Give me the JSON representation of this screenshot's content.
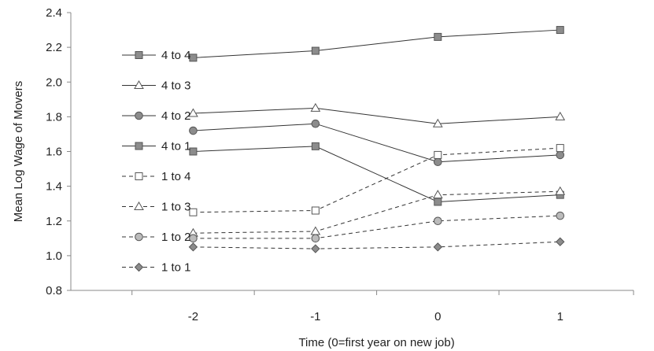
{
  "chart_data": {
    "type": "line",
    "title": "",
    "xlabel": "Time (0=first year on new job)",
    "ylabel": "Mean Log Wage of Movers",
    "x": [
      -2,
      -1,
      0,
      1
    ],
    "x_tick_labels": [
      "-2",
      "-1",
      "0",
      "1"
    ],
    "ylim": [
      0.8,
      2.4
    ],
    "y_ticks": [
      0.8,
      1.0,
      1.2,
      1.4,
      1.6,
      1.8,
      2.0,
      2.2,
      2.4
    ],
    "y_tick_labels": [
      "0.8",
      "1.0",
      "1.2",
      "1.4",
      "1.6",
      "1.8",
      "2.0",
      "2.2",
      "2.4"
    ],
    "grid": false,
    "legend_position": "left",
    "series": [
      {
        "name": "4 to 4",
        "values": [
          2.14,
          2.18,
          2.26,
          2.3
        ],
        "marker": "square",
        "fill": "#8c8c8c",
        "dash": "solid"
      },
      {
        "name": "4 to 3",
        "values": [
          1.82,
          1.85,
          1.76,
          1.8
        ],
        "marker": "triangle",
        "fill": "#ffffff",
        "dash": "solid"
      },
      {
        "name": "4 to 2",
        "values": [
          1.72,
          1.76,
          1.54,
          1.58
        ],
        "marker": "circle",
        "fill": "#8c8c8c",
        "dash": "solid"
      },
      {
        "name": "4 to 1",
        "values": [
          1.6,
          1.63,
          1.31,
          1.35
        ],
        "marker": "square",
        "fill": "#8c8c8c",
        "dash": "solid"
      },
      {
        "name": "1 to 4",
        "values": [
          1.25,
          1.26,
          1.58,
          1.62
        ],
        "marker": "square",
        "fill": "#ffffff",
        "dash": "dashed"
      },
      {
        "name": "1 to 3",
        "values": [
          1.13,
          1.14,
          1.35,
          1.37
        ],
        "marker": "triangle",
        "fill": "#ffffff",
        "dash": "dashed"
      },
      {
        "name": "1 to 2",
        "values": [
          1.1,
          1.1,
          1.2,
          1.23
        ],
        "marker": "circle",
        "fill": "#bbbbbb",
        "dash": "dashed"
      },
      {
        "name": "1 to 1",
        "values": [
          1.05,
          1.04,
          1.05,
          1.08
        ],
        "marker": "diamond",
        "fill": "#8c8c8c",
        "dash": "dashed"
      }
    ]
  }
}
